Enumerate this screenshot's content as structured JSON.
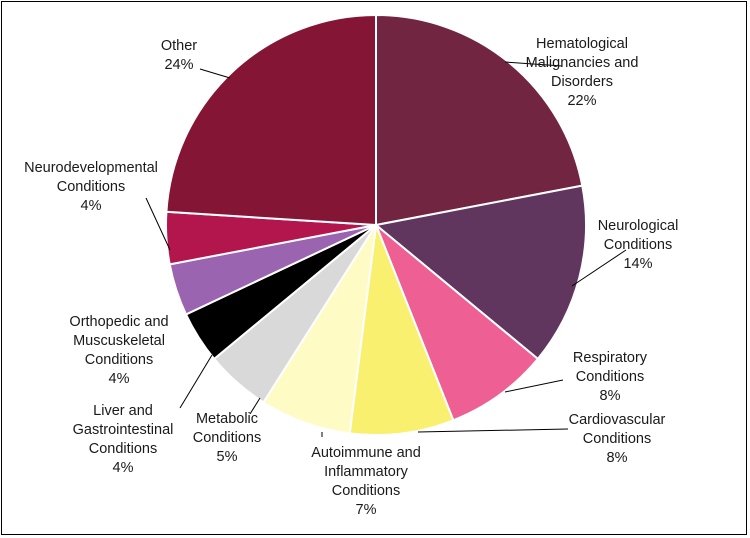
{
  "chart_data": {
    "type": "pie",
    "title": "",
    "unit": "%",
    "slices": [
      {
        "label": "Hematological Malignancies and Disorders",
        "value": 22,
        "color": "#722540"
      },
      {
        "label": "Neurological Conditions",
        "value": 14,
        "color": "#61365e"
      },
      {
        "label": "Respiratory Conditions",
        "value": 8,
        "color": "#ee6093"
      },
      {
        "label": "Cardiovascular Conditions",
        "value": 8,
        "color": "#f9f06f"
      },
      {
        "label": "Autoimmune and Inflammatory Conditions",
        "value": 7,
        "color": "#fefbc5"
      },
      {
        "label": "Metabolic Conditions",
        "value": 5,
        "color": "#d9d9d9"
      },
      {
        "label": "Liver and Gastrointestinal Conditions",
        "value": 4,
        "color": "#000000"
      },
      {
        "label": "Orthopedic and Muscuskeletal Conditions",
        "value": 4,
        "color": "#9a64b0"
      },
      {
        "label": "Neurodevelopmental Conditions",
        "value": 4,
        "color": "#b3164d"
      },
      {
        "label": "Other",
        "value": 24,
        "color": "#841534"
      }
    ],
    "labels": [
      {
        "lines": [
          "Hematological",
          "Malignancies and",
          "Disorders"
        ],
        "pct": "22%"
      },
      {
        "lines": [
          "Neurological",
          "Conditions"
        ],
        "pct": "14%"
      },
      {
        "lines": [
          "Respiratory",
          "Conditions"
        ],
        "pct": "8%"
      },
      {
        "lines": [
          "Cardiovascular",
          "Conditions"
        ],
        "pct": "8%"
      },
      {
        "lines": [
          "Autoimmune and",
          "Inflammatory",
          "Conditions"
        ],
        "pct": "7%"
      },
      {
        "lines": [
          "Metabolic",
          "Conditions"
        ],
        "pct": "5%"
      },
      {
        "lines": [
          "Liver and",
          "Gastrointestinal",
          "Conditions"
        ],
        "pct": "4%"
      },
      {
        "lines": [
          "Orthopedic and",
          "Muscuskeletal",
          "Conditions"
        ],
        "pct": "4%"
      },
      {
        "lines": [
          "Neurodevelopmental",
          "Conditions"
        ],
        "pct": "4%"
      },
      {
        "lines": [
          "Other"
        ],
        "pct": "24%"
      }
    ]
  }
}
